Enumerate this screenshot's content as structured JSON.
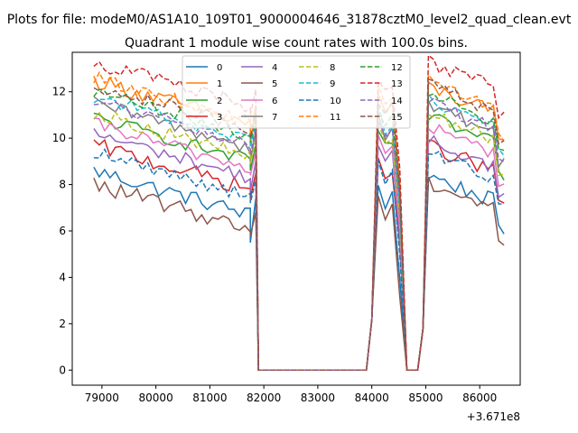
{
  "chart_data": {
    "type": "line",
    "suptitle": "Plots for file: modeM0/AS1A10_109T01_9000004646_31878cztM0_level2_quad_clean.evt",
    "title": "Quadrant 1 module wise count rates with 100.0s bins.",
    "xlabel": "",
    "ylabel": "",
    "x_offset_label": "+3.671e8",
    "x_offset": 367100000,
    "xlim": [
      78450,
      86750
    ],
    "ylim": [
      -0.65,
      13.7
    ],
    "xticks": [
      79000,
      80000,
      81000,
      82000,
      83000,
      84000,
      85000,
      86000
    ],
    "xtick_labels": [
      "79000",
      "80000",
      "81000",
      "82000",
      "83000",
      "84000",
      "85000",
      "86000"
    ],
    "yticks": [
      0,
      2,
      4,
      6,
      8,
      10,
      12
    ],
    "ytick_labels": [
      "0",
      "2",
      "4",
      "6",
      "8",
      "10",
      "12"
    ],
    "legend_position": "upper center",
    "segments": [
      {
        "x_start": 78850,
        "x_end": 81750,
        "step": 100
      },
      {
        "x_start": 81750,
        "x_end": 81850,
        "step": 100
      },
      {
        "x_start": 81900,
        "x_end": 83900,
        "step": 100
      },
      {
        "x_start": 83900,
        "x_end": 84750,
        "step": 85
      },
      {
        "x_start": 84750,
        "x_end": 86450,
        "step": 100
      }
    ],
    "series": [
      {
        "name": "0",
        "color": "#1f77b4",
        "dash": "solid",
        "level": 7.0,
        "end_level": 6.5,
        "noise": 0.35,
        "dip": 5.5
      },
      {
        "name": "1",
        "color": "#ff7f0e",
        "dash": "solid",
        "level": 10.9,
        "end_level": 10.3,
        "noise": 0.35,
        "dip": 9.8
      },
      {
        "name": "2",
        "color": "#2ca02c",
        "dash": "solid",
        "level": 9.3,
        "end_level": 9.0,
        "noise": 0.3,
        "dip": 8.6
      },
      {
        "name": "3",
        "color": "#d62728",
        "dash": "solid",
        "level": 8.1,
        "end_level": 7.8,
        "noise": 0.35,
        "dip": 7.4
      },
      {
        "name": "4",
        "color": "#9467bd",
        "dash": "solid",
        "level": 8.6,
        "end_level": 8.0,
        "noise": 0.3,
        "dip": 7.7
      },
      {
        "name": "5",
        "color": "#8c564b",
        "dash": "solid",
        "level": 6.4,
        "end_level": 6.2,
        "noise": 0.35,
        "dip": 5.8
      },
      {
        "name": "6",
        "color": "#e377c2",
        "dash": "solid",
        "level": 9.0,
        "end_level": 8.6,
        "noise": 0.3,
        "dip": 8.4
      },
      {
        "name": "7",
        "color": "#7f7f7f",
        "dash": "solid",
        "level": 9.9,
        "end_level": 9.5,
        "noise": 0.3,
        "dip": 9.0
      },
      {
        "name": "8",
        "color": "#bcbd22",
        "dash": "dashed",
        "level": 9.5,
        "end_level": 9.2,
        "noise": 0.3,
        "dip": 8.9
      },
      {
        "name": "9",
        "color": "#17becf",
        "dash": "dashed",
        "level": 10.2,
        "end_level": 9.8,
        "noise": 0.3,
        "dip": 9.6
      },
      {
        "name": "10",
        "color": "#1f77b4",
        "dash": "dashed",
        "level": 7.8,
        "end_level": 7.5,
        "noise": 0.3,
        "dip": 7.2
      },
      {
        "name": "11",
        "color": "#ff7f0e",
        "dash": "dashed",
        "level": 11.0,
        "end_level": 10.6,
        "noise": 0.3,
        "dip": 10.2
      },
      {
        "name": "12",
        "color": "#2ca02c",
        "dash": "dashed",
        "level": 10.4,
        "end_level": 10.0,
        "noise": 0.3,
        "dip": 9.8
      },
      {
        "name": "13",
        "color": "#d62728",
        "dash": "dashed",
        "level": 11.7,
        "end_level": 11.4,
        "noise": 0.35,
        "dip": 11.0
      },
      {
        "name": "14",
        "color": "#9467bd",
        "dash": "dashed",
        "level": 10.0,
        "end_level": 9.7,
        "noise": 0.3,
        "dip": 9.3
      },
      {
        "name": "15",
        "color": "#8c564b",
        "dash": "dashed",
        "level": 10.7,
        "end_level": 10.4,
        "noise": 0.3,
        "dip": 10.0
      }
    ]
  }
}
